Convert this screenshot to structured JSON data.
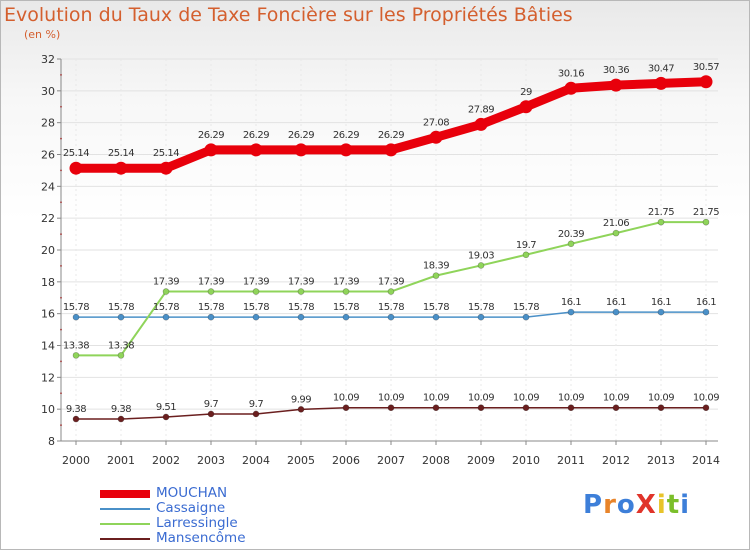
{
  "title": "Evolution du Taux de Taxe Foncière sur les Propriétés Bâties",
  "subtitle": "(en %)",
  "logo": {
    "text": "ProXiti",
    "colors": [
      "#3d7fd9",
      "#e8842a",
      "#3d7fd9",
      "#e0342a",
      "#e8c42a",
      "#7bbf2a",
      "#3d7fd9"
    ]
  },
  "chart_data": {
    "type": "line",
    "title": "Evolution du Taux de Taxe Foncière sur les Propriétés Bâties",
    "ylabel": "(en %)",
    "xlabel": "",
    "x": [
      "2000",
      "2001",
      "2002",
      "2003",
      "2004",
      "2005",
      "2006",
      "2007",
      "2008",
      "2009",
      "2010",
      "2011",
      "2012",
      "2013",
      "2014"
    ],
    "ylim": [
      8,
      32
    ],
    "yticks": [
      8,
      10,
      12,
      14,
      16,
      18,
      20,
      22,
      24,
      26,
      28,
      30,
      32
    ],
    "grid": true,
    "legend_position": "bottom-left",
    "series": [
      {
        "name": "MOUCHAN",
        "color": "#e8000b",
        "values": [
          25.14,
          25.14,
          25.14,
          26.29,
          26.29,
          26.29,
          26.29,
          26.29,
          27.08,
          27.89,
          29,
          30.16,
          30.36,
          30.47,
          30.57
        ],
        "labels": [
          "25.14",
          "25.14",
          "25.14",
          "26.29",
          "26.29",
          "26.29",
          "26.29",
          "26.29",
          "27.08",
          "27.89",
          "29",
          "30.16",
          "30.36",
          "30.47",
          "30.57"
        ]
      },
      {
        "name": "Cassaigne",
        "color": "#4a90c8",
        "values": [
          15.78,
          15.78,
          15.78,
          15.78,
          15.78,
          15.78,
          15.78,
          15.78,
          15.78,
          15.78,
          15.78,
          16.1,
          16.1,
          16.1,
          16.1
        ],
        "labels": [
          "15.78",
          "15.78",
          "15.78",
          "15.78",
          "15.78",
          "15.78",
          "15.78",
          "15.78",
          "15.78",
          "15.78",
          "15.78",
          "16.1",
          "16.1",
          "16.1",
          "16.1"
        ]
      },
      {
        "name": "Larressingle",
        "color": "#8fd45a",
        "values": [
          13.38,
          13.38,
          17.39,
          17.39,
          17.39,
          17.39,
          17.39,
          17.39,
          18.39,
          19.03,
          19.7,
          20.39,
          21.06,
          21.75,
          21.75
        ],
        "labels": [
          "13.38",
          "13.38",
          "17.39",
          "17.39",
          "17.39",
          "17.39",
          "17.39",
          "17.39",
          "18.39",
          "19.03",
          "19.7",
          "20.39",
          "21.06",
          "21.75",
          "21.75"
        ]
      },
      {
        "name": "Mansencôme",
        "color": "#6b1f1f",
        "values": [
          9.38,
          9.38,
          9.51,
          9.7,
          9.7,
          9.99,
          10.09,
          10.09,
          10.09,
          10.09,
          10.09,
          10.09,
          10.09,
          10.09,
          10.09
        ],
        "labels": [
          "9.38",
          "9.38",
          "9.51",
          "9.7",
          "9.7",
          "9.99",
          "10.09",
          "10.09",
          "10.09",
          "10.09",
          "10.09",
          "10.09",
          "10.09",
          "10.09",
          "10.09"
        ]
      }
    ]
  }
}
